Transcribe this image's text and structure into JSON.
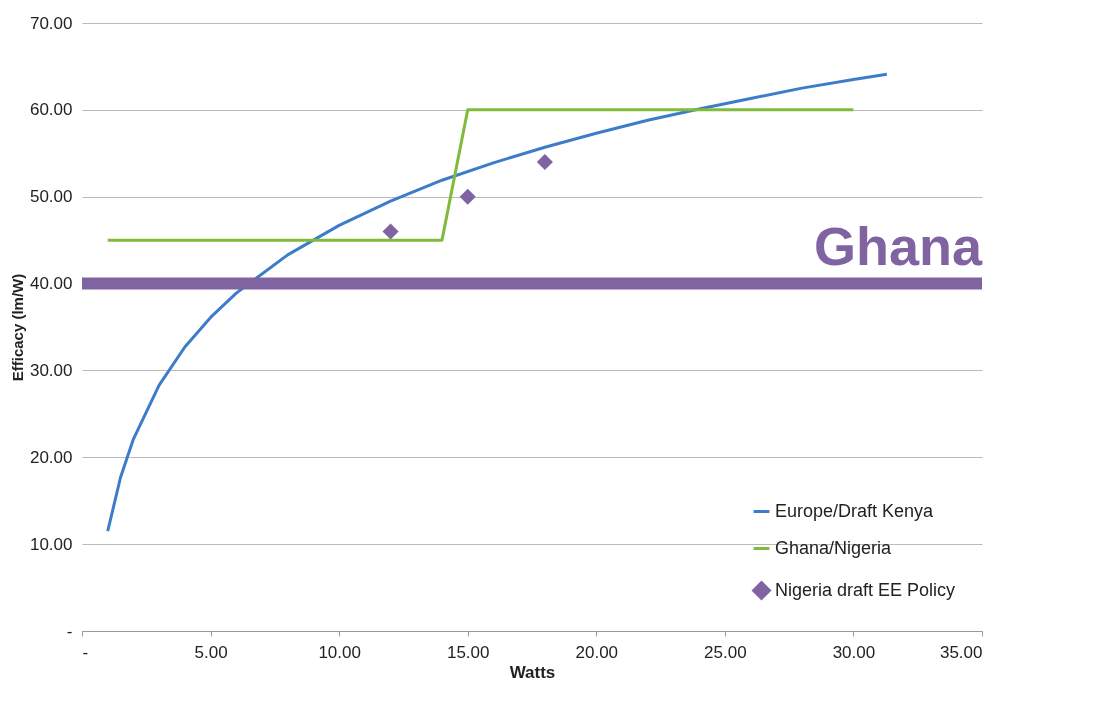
{
  "chart_data": {
    "type": "line",
    "xlabel": "Watts",
    "ylabel": "Efficacy (lm/W)",
    "xlim": [
      0,
      35
    ],
    "xticks": [
      {
        "value": 0,
        "label": "-"
      },
      {
        "value": 5,
        "label": "5.00"
      },
      {
        "value": 10,
        "label": "10.00"
      },
      {
        "value": 15,
        "label": "15.00"
      },
      {
        "value": 20,
        "label": "20.00"
      },
      {
        "value": 25,
        "label": "25.00"
      },
      {
        "value": 30,
        "label": "30.00"
      },
      {
        "value": 35,
        "label": "35.00"
      }
    ],
    "ylim": [
      0,
      70
    ],
    "yticks": [
      {
        "value": 0,
        "label": "-"
      },
      {
        "value": 10,
        "label": "10.00"
      },
      {
        "value": 20,
        "label": "20.00"
      },
      {
        "value": 30,
        "label": "30.00"
      },
      {
        "value": 40,
        "label": "40.00"
      },
      {
        "value": 50,
        "label": "50.00"
      },
      {
        "value": 60,
        "label": "60.00"
      },
      {
        "value": 70,
        "label": "70.00"
      }
    ],
    "grid": "y",
    "legend": "bottom right",
    "marker": "none",
    "series": [
      {
        "name": "Europe/Draft Kenya",
        "color": "#3d7cc9",
        "x": [
          1,
          1.5,
          2,
          3,
          4,
          5,
          6,
          8,
          10,
          12,
          14,
          16,
          18,
          20,
          22,
          24,
          26,
          28,
          30,
          31.3
        ],
        "values": [
          11.5,
          17.7,
          22.1,
          28.3,
          32.7,
          36.1,
          38.9,
          43.3,
          46.7,
          49.5,
          51.9,
          53.9,
          55.7,
          57.3,
          58.8,
          60.1,
          61.3,
          62.5,
          63.5,
          64.1
        ]
      },
      {
        "name": "Ghana/Nigeria",
        "color": "#80bb3d",
        "x": [
          1,
          14,
          15,
          30
        ],
        "values": [
          45,
          45,
          60,
          60
        ]
      },
      {
        "name": "Nigeria draft EE Policy",
        "type": "scatter",
        "marker": "diamond",
        "color": "#8064a2",
        "x": [
          12,
          15,
          18
        ],
        "values": [
          46,
          50,
          54
        ]
      }
    ],
    "ref_lines": [
      {
        "axis": "y",
        "value": 40,
        "label": "Ghana",
        "color": "#8064a2"
      }
    ]
  }
}
